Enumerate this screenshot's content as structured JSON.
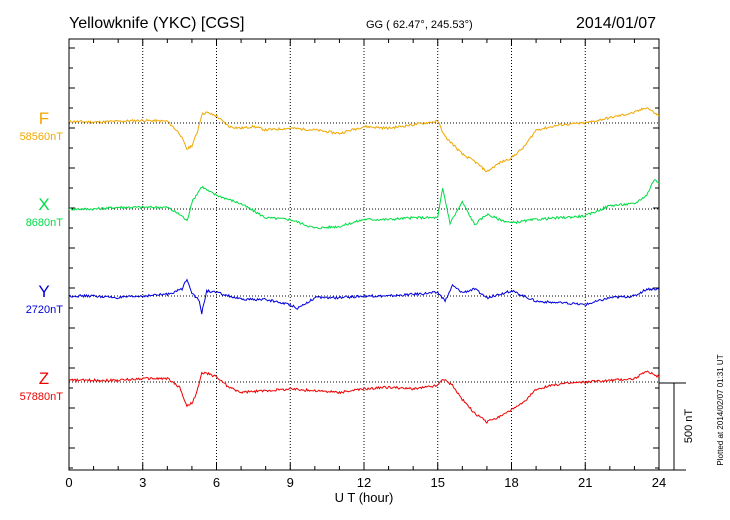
{
  "header": {
    "station": "Yellowknife (YKC)  [CGS]",
    "coords": "GG ( 62.47°, 245.53°)",
    "date": "2014/01/07"
  },
  "footer": {
    "plotted": "Plotted at 2014/02/07 01:31  UT"
  },
  "chart_data": {
    "type": "line",
    "title": "",
    "xlabel": "U T (hour)",
    "xlim": [
      0,
      24
    ],
    "xticks": [
      "0",
      "3",
      "6",
      "9",
      "12",
      "15",
      "18",
      "21",
      "24"
    ],
    "grid": true,
    "scale_bar": {
      "label": "500 nT",
      "value_nT": 500
    },
    "series": [
      {
        "name": "F",
        "baseline_label": "58560nT",
        "baseline_nT": 58560,
        "color": "#f0a800",
        "x": [
          0,
          1,
          2,
          3,
          4,
          4.5,
          4.8,
          5.0,
          5.2,
          5.4,
          5.6,
          6.0,
          6.5,
          7.0,
          7.5,
          8.0,
          9.0,
          10.0,
          11.0,
          12.0,
          13.0,
          14.0,
          15.0,
          15.3,
          15.6,
          16.0,
          16.5,
          17.0,
          17.5,
          18.0,
          18.5,
          19.0,
          20.0,
          21.0,
          22.0,
          23.0,
          23.5,
          24.0
        ],
        "y": [
          10,
          5,
          10,
          15,
          10,
          -60,
          -150,
          -130,
          -60,
          50,
          60,
          40,
          -20,
          -30,
          -20,
          -40,
          -30,
          -40,
          -60,
          -20,
          -30,
          -10,
          10,
          -80,
          -120,
          -180,
          -220,
          -280,
          -230,
          -200,
          -140,
          -40,
          -10,
          0,
          30,
          60,
          90,
          40
        ]
      },
      {
        "name": "X",
        "baseline_label": "8680nT",
        "baseline_nT": 8680,
        "color": "#00dd44",
        "x": [
          0,
          1,
          2,
          3,
          4,
          4.6,
          4.8,
          5.0,
          5.4,
          5.7,
          6.0,
          7.0,
          8.0,
          9.0,
          10.0,
          11.0,
          12.0,
          13.0,
          14.0,
          15.0,
          15.2,
          15.5,
          16.0,
          16.5,
          17.0,
          17.5,
          18.0,
          19.0,
          20.0,
          21.0,
          22.0,
          23.0,
          23.5,
          23.8,
          24.0
        ],
        "y": [
          0,
          0,
          10,
          10,
          10,
          -40,
          -70,
          40,
          130,
          100,
          80,
          30,
          -50,
          -60,
          -110,
          -100,
          -60,
          -60,
          -50,
          -50,
          120,
          -80,
          40,
          -90,
          -30,
          -60,
          -80,
          -60,
          -50,
          -40,
          20,
          30,
          80,
          170,
          150
        ]
      },
      {
        "name": "Y",
        "baseline_label": "2720nT",
        "baseline_nT": 2720,
        "color": "#0000dd",
        "x": [
          0,
          1,
          2,
          3,
          4,
          4.6,
          4.8,
          5.0,
          5.3,
          5.4,
          5.6,
          6.0,
          7.0,
          8.0,
          9.0,
          9.3,
          10.0,
          11.0,
          12.0,
          13.0,
          14.0,
          15.0,
          15.3,
          15.6,
          16.0,
          16.5,
          17.0,
          18.0,
          19.0,
          20.0,
          21.0,
          22.0,
          23.0,
          23.5,
          24.0
        ],
        "y": [
          0,
          0,
          -10,
          0,
          10,
          40,
          100,
          20,
          -30,
          -100,
          30,
          20,
          -20,
          -20,
          -50,
          -70,
          -10,
          -10,
          0,
          0,
          10,
          20,
          -30,
          60,
          20,
          40,
          -10,
          30,
          -30,
          -40,
          -50,
          -10,
          0,
          40,
          40
        ]
      },
      {
        "name": "Z",
        "baseline_label": "57880nT",
        "baseline_nT": 57880,
        "color": "#ee0000",
        "x": [
          0,
          1,
          2,
          3,
          4,
          4.5,
          4.8,
          5.0,
          5.2,
          5.4,
          5.6,
          6.0,
          6.5,
          7.0,
          8.0,
          9.0,
          10.0,
          11.0,
          12.0,
          13.0,
          14.0,
          15.0,
          15.2,
          15.6,
          16.0,
          16.5,
          17.0,
          17.5,
          18.0,
          18.5,
          19.0,
          20.0,
          21.0,
          22.0,
          23.0,
          23.5,
          24.0
        ],
        "y": [
          10,
          10,
          10,
          20,
          20,
          -30,
          -140,
          -120,
          -60,
          50,
          50,
          30,
          -30,
          -60,
          -50,
          -40,
          -50,
          -60,
          -40,
          -30,
          -40,
          -20,
          20,
          -20,
          -100,
          -180,
          -230,
          -200,
          -160,
          -120,
          -40,
          -10,
          0,
          10,
          20,
          60,
          30
        ]
      }
    ]
  }
}
